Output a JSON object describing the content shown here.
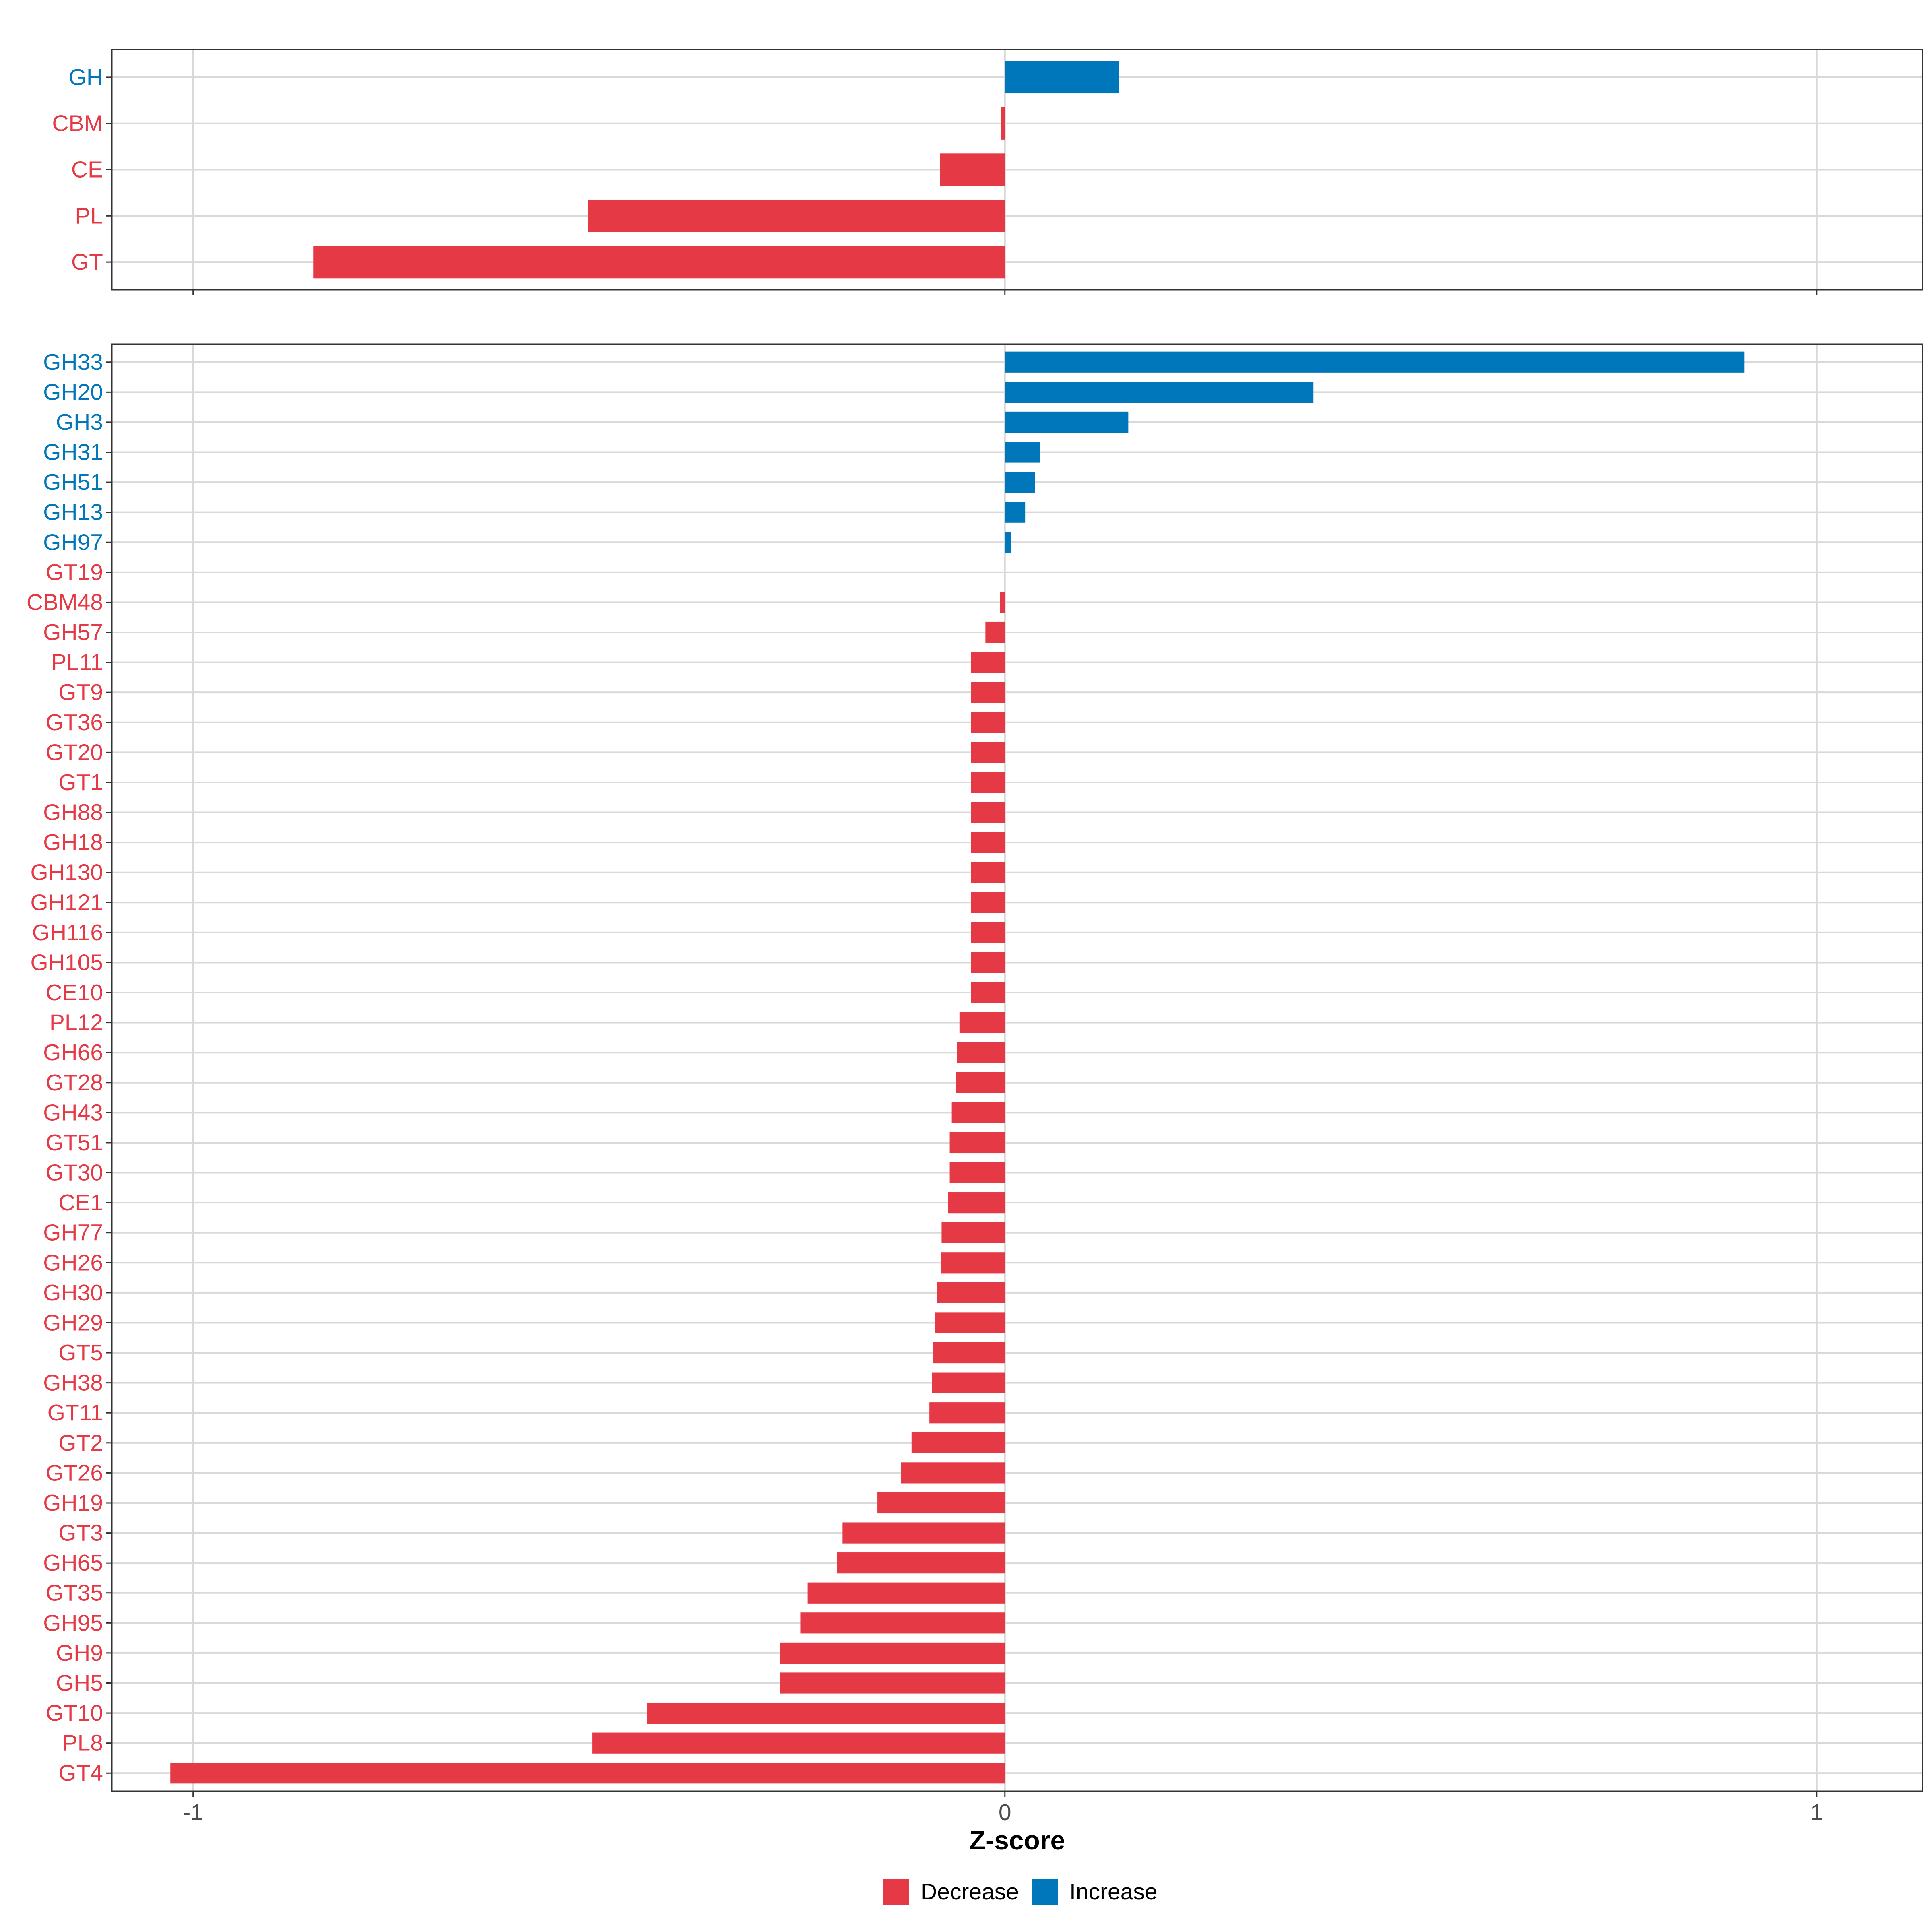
{
  "colors": {
    "decrease": "#e63946",
    "increase": "#0077bb",
    "grid": "#d9d9d9",
    "panel_border": "#333333",
    "axis_text": "#4d4d4d"
  },
  "chart_data": [
    {
      "type": "bar",
      "orientation": "horizontal",
      "panel": "top",
      "title": "",
      "xlabel": "",
      "xlim": [
        -1.1,
        1.13
      ],
      "xticks": [
        -1,
        0,
        1
      ],
      "x_tick_labels_shown": false,
      "grid": true,
      "bars": [
        {
          "label": "GH",
          "value": 0.14,
          "direction": "Increase"
        },
        {
          "label": "CBM",
          "value": -0.005,
          "direction": "Decrease"
        },
        {
          "label": "CE",
          "value": -0.08,
          "direction": "Decrease"
        },
        {
          "label": "PL",
          "value": -0.513,
          "direction": "Decrease"
        },
        {
          "label": "GT",
          "value": -0.852,
          "direction": "Decrease"
        }
      ]
    },
    {
      "type": "bar",
      "orientation": "horizontal",
      "panel": "bottom",
      "title": "",
      "xlabel": "Z-score",
      "xlim": [
        -1.1,
        1.13
      ],
      "xticks": [
        -1,
        0,
        1
      ],
      "x_tick_labels": [
        "-1",
        "0",
        "1"
      ],
      "grid": true,
      "bars": [
        {
          "label": "GH33",
          "value": 0.911,
          "direction": "Increase"
        },
        {
          "label": "GH20",
          "value": 0.38,
          "direction": "Increase"
        },
        {
          "label": "GH3",
          "value": 0.152,
          "direction": "Increase"
        },
        {
          "label": "GH31",
          "value": 0.043,
          "direction": "Increase"
        },
        {
          "label": "GH51",
          "value": 0.037,
          "direction": "Increase"
        },
        {
          "label": "GH13",
          "value": 0.025,
          "direction": "Increase"
        },
        {
          "label": "GH97",
          "value": 0.008,
          "direction": "Increase"
        },
        {
          "label": "GT19",
          "value": 0.0,
          "direction": "Decrease"
        },
        {
          "label": "CBM48",
          "value": -0.006,
          "direction": "Decrease"
        },
        {
          "label": "GH57",
          "value": -0.024,
          "direction": "Decrease"
        },
        {
          "label": "PL11",
          "value": -0.042,
          "direction": "Decrease"
        },
        {
          "label": "GT9",
          "value": -0.042,
          "direction": "Decrease"
        },
        {
          "label": "GT36",
          "value": -0.042,
          "direction": "Decrease"
        },
        {
          "label": "GT20",
          "value": -0.042,
          "direction": "Decrease"
        },
        {
          "label": "GT1",
          "value": -0.042,
          "direction": "Decrease"
        },
        {
          "label": "GH88",
          "value": -0.042,
          "direction": "Decrease"
        },
        {
          "label": "GH18",
          "value": -0.042,
          "direction": "Decrease"
        },
        {
          "label": "GH130",
          "value": -0.042,
          "direction": "Decrease"
        },
        {
          "label": "GH121",
          "value": -0.042,
          "direction": "Decrease"
        },
        {
          "label": "GH116",
          "value": -0.042,
          "direction": "Decrease"
        },
        {
          "label": "GH105",
          "value": -0.042,
          "direction": "Decrease"
        },
        {
          "label": "CE10",
          "value": -0.042,
          "direction": "Decrease"
        },
        {
          "label": "PL12",
          "value": -0.056,
          "direction": "Decrease"
        },
        {
          "label": "GH66",
          "value": -0.059,
          "direction": "Decrease"
        },
        {
          "label": "GT28",
          "value": -0.06,
          "direction": "Decrease"
        },
        {
          "label": "GH43",
          "value": -0.066,
          "direction": "Decrease"
        },
        {
          "label": "GT51",
          "value": -0.068,
          "direction": "Decrease"
        },
        {
          "label": "GT30",
          "value": -0.068,
          "direction": "Decrease"
        },
        {
          "label": "CE1",
          "value": -0.07,
          "direction": "Decrease"
        },
        {
          "label": "GH77",
          "value": -0.078,
          "direction": "Decrease"
        },
        {
          "label": "GH26",
          "value": -0.079,
          "direction": "Decrease"
        },
        {
          "label": "GH30",
          "value": -0.084,
          "direction": "Decrease"
        },
        {
          "label": "GH29",
          "value": -0.086,
          "direction": "Decrease"
        },
        {
          "label": "GT5",
          "value": -0.089,
          "direction": "Decrease"
        },
        {
          "label": "GH38",
          "value": -0.09,
          "direction": "Decrease"
        },
        {
          "label": "GT11",
          "value": -0.093,
          "direction": "Decrease"
        },
        {
          "label": "GT2",
          "value": -0.115,
          "direction": "Decrease"
        },
        {
          "label": "GT26",
          "value": -0.128,
          "direction": "Decrease"
        },
        {
          "label": "GH19",
          "value": -0.157,
          "direction": "Decrease"
        },
        {
          "label": "GT3",
          "value": -0.2,
          "direction": "Decrease"
        },
        {
          "label": "GH65",
          "value": -0.207,
          "direction": "Decrease"
        },
        {
          "label": "GT35",
          "value": -0.243,
          "direction": "Decrease"
        },
        {
          "label": "GH95",
          "value": -0.252,
          "direction": "Decrease"
        },
        {
          "label": "GH9",
          "value": -0.277,
          "direction": "Decrease"
        },
        {
          "label": "GH5",
          "value": -0.277,
          "direction": "Decrease"
        },
        {
          "label": "GT10",
          "value": -0.441,
          "direction": "Decrease"
        },
        {
          "label": "PL8",
          "value": -0.508,
          "direction": "Decrease"
        },
        {
          "label": "GT4",
          "value": -1.028,
          "direction": "Decrease"
        }
      ]
    }
  ],
  "legend": {
    "position": "bottom",
    "items": [
      {
        "label": "Decrease",
        "color": "#e63946"
      },
      {
        "label": "Increase",
        "color": "#0077bb"
      }
    ]
  }
}
